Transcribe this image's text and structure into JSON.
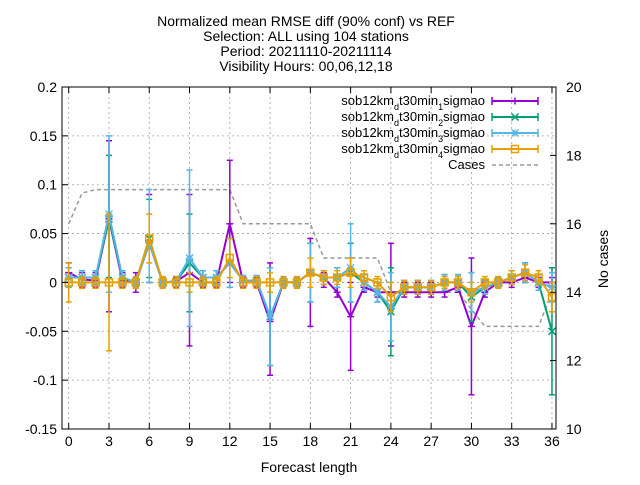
{
  "chart_data": {
    "type": "line",
    "title_lines": [
      "Normalized mean RMSE diff (90% conf) vs REF",
      "Selection: ALL using   104 stations",
      "Period: 20211110-20211114",
      "Visibility   Hours: 00,06,12,18"
    ],
    "xlabel": "Forecast length",
    "ylabel": "",
    "y2label": "No cases",
    "xlim": [
      -0.5,
      36.3
    ],
    "ylim": [
      -0.15,
      0.2
    ],
    "y2lim": [
      10,
      20
    ],
    "xticks": [
      0,
      3,
      6,
      9,
      12,
      15,
      18,
      21,
      24,
      27,
      30,
      33,
      36
    ],
    "yticks": [
      "-0.15",
      "-0.1",
      "-0.05",
      "0",
      "0.05",
      "0.1",
      "0.15",
      "0.2"
    ],
    "y2ticks": [
      "10",
      "12",
      "14",
      "16",
      "18",
      "20"
    ],
    "grid": true,
    "legend_position": "top-right",
    "x": [
      0,
      1,
      2,
      3,
      4,
      5,
      6,
      7,
      8,
      9,
      10,
      11,
      12,
      13,
      14,
      15,
      16,
      17,
      18,
      19,
      20,
      21,
      22,
      23,
      24,
      25,
      26,
      27,
      28,
      29,
      30,
      31,
      32,
      33,
      34,
      35,
      36
    ],
    "series": [
      {
        "name_parts": [
          "sob12km",
          "d",
          "t30min",
          "1",
          "sigmao"
        ],
        "color": "#9400d3",
        "marker": "plus",
        "values": [
          0.01,
          0.003,
          0.002,
          0.065,
          0.002,
          0,
          0.04,
          0,
          0.001,
          0.01,
          0,
          0,
          0.06,
          0,
          0,
          -0.04,
          0,
          0,
          0.01,
          0.005,
          -0.01,
          -0.035,
          -0.005,
          -0.01,
          -0.01,
          -0.01,
          -0.01,
          -0.01,
          -0.01,
          -0.005,
          -0.045,
          -0.01,
          0,
          0,
          0.005,
          0,
          0
        ],
        "ci_low": [
          0,
          -0.005,
          -0.005,
          -0.03,
          -0.005,
          -0.01,
          0,
          -0.005,
          -0.005,
          -0.065,
          -0.005,
          -0.005,
          0,
          -0.005,
          -0.005,
          -0.095,
          -0.005,
          -0.005,
          -0.045,
          -0.005,
          -0.015,
          -0.09,
          -0.01,
          -0.015,
          -0.065,
          -0.015,
          -0.015,
          -0.015,
          -0.015,
          -0.01,
          -0.115,
          -0.015,
          -0.005,
          -0.005,
          0,
          -0.005,
          -0.005
        ],
        "ci_high": [
          0.02,
          0.01,
          0.01,
          0.145,
          0.01,
          0.01,
          0.09,
          0.005,
          0.005,
          0.09,
          0.005,
          0.005,
          0.125,
          0.005,
          0.005,
          0.02,
          0.005,
          0.005,
          0.045,
          0.01,
          0.005,
          0,
          0,
          0,
          0.04,
          0,
          0,
          0,
          0,
          0,
          0.025,
          0,
          0.005,
          0.005,
          0.01,
          0.005,
          0.005
        ]
      },
      {
        "name_parts": [
          "sob12km",
          "d",
          "t30min",
          "2",
          "sigmao"
        ],
        "color": "#009e73",
        "marker": "cross",
        "values": [
          0.005,
          0.005,
          0.005,
          0.065,
          0.005,
          0,
          0.045,
          0,
          0.001,
          0.02,
          0.005,
          0.005,
          0.02,
          0.002,
          0.002,
          -0.035,
          0,
          0,
          0.01,
          0.005,
          0.005,
          0.01,
          0,
          -0.01,
          -0.03,
          -0.005,
          -0.005,
          -0.005,
          0,
          0,
          -0.015,
          -0.005,
          0,
          0.005,
          0.01,
          0,
          -0.05
        ],
        "ci_low": [
          -0.005,
          -0.002,
          -0.002,
          0.005,
          -0.002,
          -0.005,
          0.005,
          -0.005,
          -0.004,
          -0.03,
          -0.002,
          -0.002,
          -0.005,
          -0.003,
          -0.003,
          -0.085,
          -0.005,
          -0.005,
          -0.02,
          -0.002,
          -0.005,
          -0.02,
          -0.008,
          -0.02,
          -0.075,
          -0.012,
          -0.012,
          -0.012,
          -0.008,
          -0.008,
          -0.04,
          -0.012,
          -0.005,
          -0.002,
          0,
          -0.008,
          -0.115
        ],
        "ci_high": [
          0.015,
          0.012,
          0.012,
          0.13,
          0.012,
          0.005,
          0.085,
          0.005,
          0.006,
          0.07,
          0.012,
          0.012,
          0.045,
          0.007,
          0.007,
          0.015,
          0.005,
          0.005,
          0.04,
          0.012,
          0.015,
          0.04,
          0.008,
          0,
          0.015,
          0.002,
          0.002,
          0.002,
          0.008,
          0.008,
          0.01,
          0.002,
          0.005,
          0.012,
          0.02,
          0.008,
          0.015
        ]
      },
      {
        "name_parts": [
          "sob12km",
          "d",
          "t30min",
          "3",
          "sigmao"
        ],
        "color": "#56b4e9",
        "marker": "star",
        "values": [
          0.005,
          0.005,
          0.005,
          0.07,
          0.005,
          0,
          0.04,
          0,
          0.001,
          0.025,
          0.005,
          0.005,
          0.02,
          0.002,
          0.002,
          -0.035,
          0,
          0,
          0.01,
          0.005,
          0.005,
          0.015,
          0,
          -0.01,
          -0.025,
          -0.005,
          -0.005,
          -0.005,
          0,
          0,
          -0.01,
          -0.005,
          0,
          0.005,
          0.01,
          0,
          -0.005
        ],
        "ci_low": [
          -0.005,
          -0.002,
          -0.002,
          -0.01,
          -0.002,
          -0.005,
          0,
          -0.005,
          -0.004,
          -0.045,
          -0.002,
          -0.002,
          -0.005,
          -0.003,
          -0.003,
          -0.085,
          -0.005,
          -0.005,
          -0.02,
          -0.002,
          -0.005,
          -0.02,
          -0.008,
          -0.02,
          -0.06,
          -0.012,
          -0.012,
          -0.012,
          -0.008,
          -0.008,
          -0.03,
          -0.012,
          -0.005,
          -0.002,
          0,
          -0.008,
          -0.02
        ],
        "ci_high": [
          0.015,
          0.012,
          0.012,
          0.15,
          0.012,
          0.005,
          0.095,
          0.005,
          0.006,
          0.115,
          0.012,
          0.012,
          0.045,
          0.007,
          0.007,
          0.015,
          0.005,
          0.005,
          0.04,
          0.012,
          0.015,
          0.06,
          0.008,
          0,
          0.01,
          0.002,
          0.002,
          0.002,
          0.008,
          0.008,
          0.01,
          0.002,
          0.005,
          0.012,
          0.02,
          0.008,
          0.01
        ]
      },
      {
        "name_parts": [
          "sob12km",
          "d",
          "t30min",
          "4",
          "sigmao"
        ],
        "color": "#e69f00",
        "marker": "square",
        "values": [
          0,
          0,
          0,
          0,
          0,
          0,
          0.045,
          0,
          0,
          0,
          0,
          0,
          0.025,
          0,
          0,
          0,
          0,
          0,
          0.01,
          0.005,
          0.005,
          0.01,
          0.005,
          0,
          -0.015,
          -0.005,
          -0.005,
          -0.005,
          0,
          0,
          -0.01,
          0,
          0,
          0.005,
          0.01,
          0.005,
          -0.015
        ],
        "ci_low": [
          -0.02,
          -0.006,
          -0.006,
          -0.07,
          -0.006,
          -0.006,
          0.02,
          -0.006,
          -0.006,
          -0.01,
          -0.006,
          -0.006,
          0.005,
          -0.006,
          -0.006,
          -0.01,
          -0.006,
          -0.006,
          -0.005,
          -0.002,
          -0.002,
          -0.005,
          -0.002,
          -0.006,
          -0.03,
          -0.012,
          -0.012,
          -0.012,
          -0.006,
          -0.006,
          -0.02,
          -0.006,
          -0.006,
          -0.002,
          0.002,
          -0.002,
          -0.03
        ],
        "ci_high": [
          0.02,
          0.006,
          0.006,
          0.07,
          0.006,
          0.006,
          0.07,
          0.006,
          0.006,
          0.01,
          0.006,
          0.006,
          0.045,
          0.006,
          0.006,
          0.01,
          0.006,
          0.006,
          0.025,
          0.012,
          0.012,
          0.025,
          0.012,
          0.006,
          0,
          0.002,
          0.002,
          0.002,
          0.006,
          0.006,
          0,
          0.006,
          0.006,
          0.012,
          0.018,
          0.012,
          0
        ]
      }
    ],
    "cases": {
      "name": "Cases",
      "color": "#999999",
      "axis": "y2",
      "x": [
        0,
        1,
        2,
        3,
        4,
        5,
        6,
        7,
        8,
        9,
        10,
        11,
        12,
        13,
        14,
        15,
        16,
        17,
        18,
        19,
        20,
        21,
        22,
        23,
        24,
        25,
        26,
        27,
        28,
        29,
        30,
        31,
        32,
        33,
        34,
        35,
        36
      ],
      "values": [
        16,
        16.9,
        17,
        17,
        17,
        17,
        17,
        17,
        17,
        17,
        17,
        17,
        17,
        16,
        16,
        16,
        16,
        16,
        16,
        15,
        15,
        15,
        15,
        15,
        14,
        14,
        14,
        14,
        14,
        14,
        13.5,
        13,
        13,
        13,
        13,
        13,
        14
      ]
    }
  }
}
